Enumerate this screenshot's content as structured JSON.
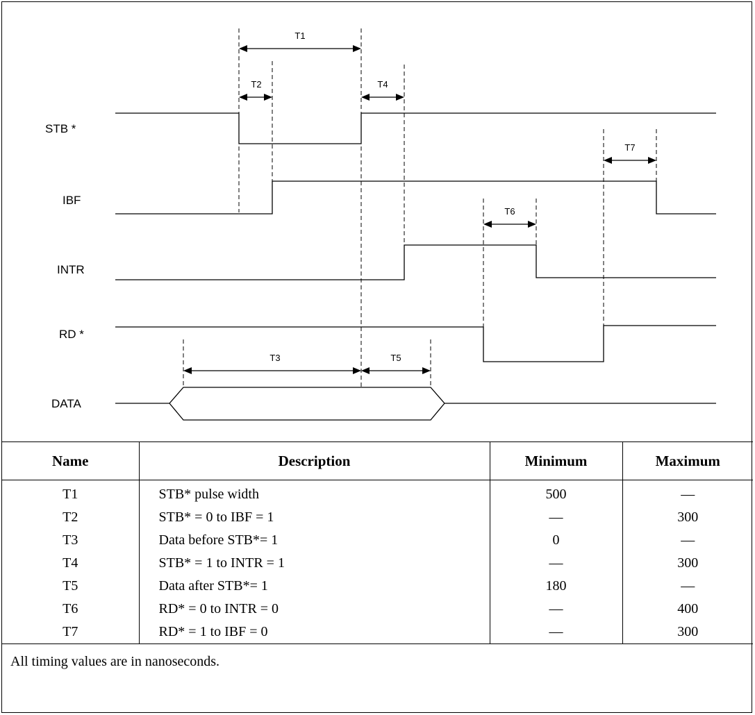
{
  "diagram": {
    "signals": [
      "STB *",
      "IBF",
      "INTR",
      "RD *",
      "DATA"
    ],
    "intervals": [
      "T1",
      "T2",
      "T3",
      "T4",
      "T5",
      "T6",
      "T7"
    ]
  },
  "table": {
    "headers": [
      "Name",
      "Description",
      "Minimum",
      "Maximum"
    ],
    "rows": [
      [
        "T1",
        "STB* pulse width",
        "500",
        "—"
      ],
      [
        "T2",
        "STB* = 0 to IBF = 1",
        "—",
        "300"
      ],
      [
        "T3",
        "Data before STB*= 1",
        "0",
        "—"
      ],
      [
        "T4",
        "STB* = 1 to INTR = 1",
        "—",
        "300"
      ],
      [
        "T5",
        "Data after STB*= 1",
        "180",
        "—"
      ],
      [
        "T6",
        "RD* = 0 to INTR = 0",
        "—",
        "400"
      ],
      [
        "T7",
        "RD* = 1 to IBF = 0",
        "—",
        "300"
      ]
    ],
    "footnote": "All timing values are in nanoseconds."
  }
}
